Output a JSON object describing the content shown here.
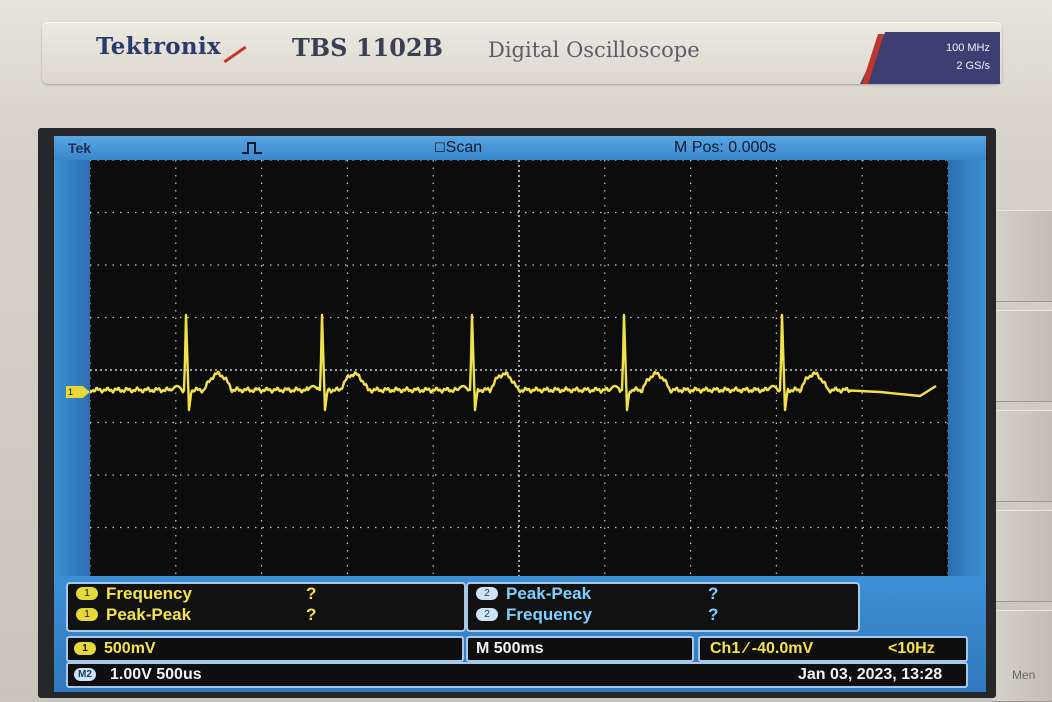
{
  "device": {
    "brand": "Tektronix",
    "model": "TBS 1102B",
    "description": "Digital Oscilloscope",
    "spec_bandwidth": "100 MHz",
    "spec_sample_rate": "2 GS/s",
    "side_menu_label": "Men"
  },
  "screen": {
    "header_logo": "Tek",
    "acquisition_mode": "Scan",
    "main_position": "M Pos: 0.000s",
    "channel_marker": "1"
  },
  "measurements": {
    "left": [
      {
        "channel": "1",
        "label": "Frequency",
        "value": "?"
      },
      {
        "channel": "1",
        "label": "Peak-Peak",
        "value": "?"
      }
    ],
    "right": [
      {
        "channel": "2",
        "label": "Peak-Peak",
        "value": "?"
      },
      {
        "channel": "2",
        "label": "Frequency",
        "value": "?"
      }
    ]
  },
  "status": {
    "ch1_chip": "1",
    "ch1_scale": "500mV",
    "timebase": "M 500ms",
    "trigger": "Ch1 ⁄ -40.0mV",
    "trigger_freq": "<10Hz",
    "math_chip": "M2",
    "math_scale": "1.00V 500us",
    "datetime": "Jan 03, 2023, 13:28"
  },
  "colors": {
    "trace": "#f0e24a",
    "graticule": "#c8c8c8",
    "ui_blue": "#3d8fd4",
    "ch2_label": "#7fd0ff",
    "ch1_label": "#f4e34a"
  }
}
